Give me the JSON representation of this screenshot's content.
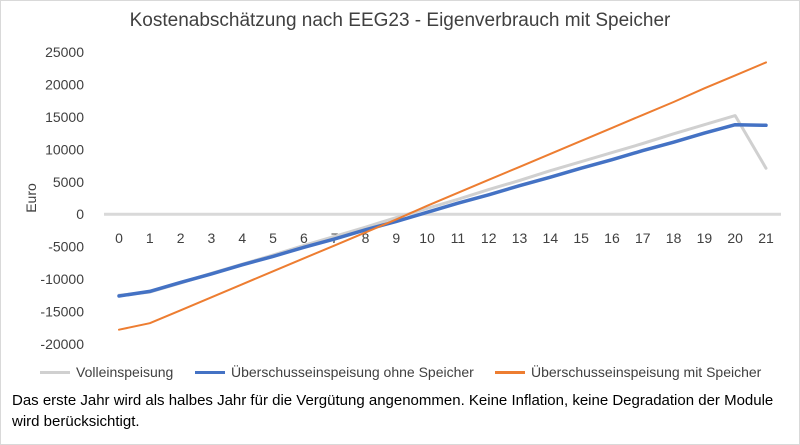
{
  "chart_data": {
    "type": "line",
    "title": "Kostenabschätzung nach EEG23 - Eigenverbrauch mit Speicher",
    "xlabel": "",
    "ylabel": "Euro",
    "categories": [
      "0",
      "1",
      "2",
      "3",
      "4",
      "5",
      "6",
      "7",
      "8",
      "9",
      "10",
      "11",
      "12",
      "13",
      "14",
      "15",
      "16",
      "17",
      "18",
      "19",
      "20",
      "21"
    ],
    "ylim": [
      -20000,
      25000
    ],
    "yticks": [
      "25000",
      "20000",
      "15000",
      "10000",
      "5000",
      "0",
      "-5000",
      "-10000",
      "-15000",
      "-20000"
    ],
    "grid": false,
    "legend_position": "bottom",
    "series": [
      {
        "name": "Volleinspeisung",
        "color": "#d0d0d0",
        "values": [
          -12500,
          -12000,
          -10600,
          -9100,
          -7700,
          -6300,
          -4800,
          -3400,
          -2000,
          -500,
          900,
          2300,
          3800,
          5200,
          6700,
          8100,
          9500,
          10900,
          12400,
          13800,
          15200,
          7100
        ]
      },
      {
        "name": "Überschusseinspeisung ohne Speicher",
        "color": "#4472c4",
        "values": [
          -12600,
          -11900,
          -10500,
          -9200,
          -7800,
          -6500,
          -5100,
          -3800,
          -2400,
          -1100,
          300,
          1700,
          3000,
          4400,
          5700,
          7100,
          8400,
          9800,
          11100,
          12500,
          13800,
          13700
        ]
      },
      {
        "name": "Überschusseinspeisung mit Speicher",
        "color": "#ed7d31",
        "values": [
          -17800,
          -16800,
          -14800,
          -12800,
          -10800,
          -8800,
          -6800,
          -4800,
          -2800,
          -800,
          1300,
          3300,
          5300,
          7300,
          9300,
          11300,
          13300,
          15300,
          17300,
          19400,
          21400,
          23400
        ]
      }
    ]
  },
  "note": "Das erste Jahr wird als halbes Jahr für die Vergütung angenommen. Keine Inflation, keine Degradation der Module wird berücksichtigt."
}
